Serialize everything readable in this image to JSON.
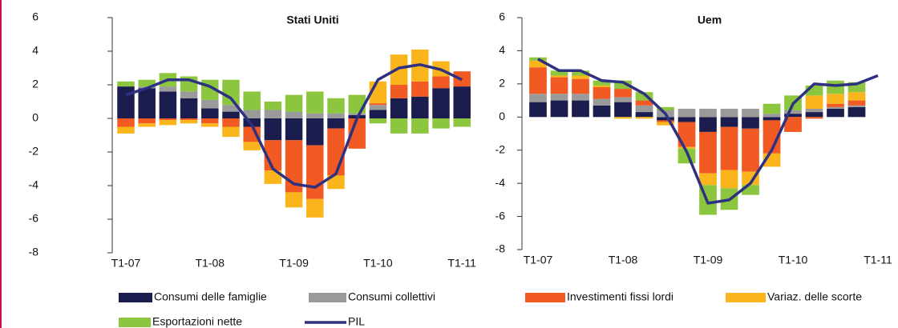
{
  "chart_data": [
    {
      "type": "bar",
      "stacked": true,
      "title": "Stati Uniti",
      "categories": [
        "T1-07",
        null,
        null,
        null,
        "T1-08",
        null,
        null,
        null,
        "T1-09",
        null,
        null,
        null,
        "T1-10",
        null,
        null,
        null,
        "T1-11"
      ],
      "ylim": [
        -8,
        6
      ],
      "yticks": [
        -8,
        -6,
        -4,
        -2,
        0,
        2,
        4,
        6
      ],
      "series": [
        {
          "name": "Consumi delle famiglie",
          "color": "#1b1d4f",
          "values": [
            1.9,
            1.8,
            1.6,
            1.2,
            0.6,
            0.4,
            -0.5,
            -1.3,
            -1.3,
            -1.6,
            -0.6,
            0.2,
            0.5,
            1.2,
            1.3,
            1.8,
            1.9
          ]
        },
        {
          "name": "Consumi collettivi",
          "color": "#9a9a9a",
          "values": [
            0,
            0.1,
            0.3,
            0.4,
            0.5,
            0.4,
            0.5,
            0.5,
            0.4,
            0.3,
            0.3,
            0.1,
            0.3,
            0,
            0,
            0,
            0
          ]
        },
        {
          "name": "Investimenti fissi lordi",
          "color": "#f15a22",
          "values": [
            -0.5,
            -0.3,
            -0.1,
            -0.1,
            -0.3,
            -0.5,
            -0.9,
            -1.8,
            -3.1,
            -3.2,
            -2.8,
            -1.8,
            0.1,
            0.8,
            0.9,
            0.7,
            0.9
          ]
        },
        {
          "name": "Variaz. delle scorte",
          "color": "#f9b51b",
          "values": [
            -0.4,
            -0.2,
            -0.3,
            -0.2,
            -0.2,
            -0.6,
            -0.5,
            -0.8,
            -0.9,
            -1.1,
            -0.8,
            0,
            1.3,
            1.8,
            1.9,
            0.9,
            0
          ]
        },
        {
          "name": "Esportazioni nette",
          "color": "#8cc63f",
          "values": [
            0.3,
            0.4,
            0.8,
            0.9,
            1.2,
            1.5,
            1.1,
            0.5,
            1.0,
            1.3,
            0.9,
            1.1,
            -0.3,
            -0.9,
            -0.9,
            -0.6,
            -0.5
          ]
        },
        {
          "name": "PIL",
          "type": "line",
          "color": "#2e3180",
          "values": [
            1.4,
            1.8,
            2.3,
            2.3,
            1.9,
            1.2,
            -0.4,
            -3.0,
            -3.9,
            -4.1,
            -3.3,
            0,
            2.3,
            3.0,
            3.2,
            2.9,
            2.3
          ]
        }
      ]
    },
    {
      "type": "bar",
      "stacked": true,
      "title": "Uem",
      "categories": [
        "T1-07",
        null,
        null,
        null,
        "T1-08",
        null,
        null,
        null,
        "T1-09",
        null,
        null,
        null,
        "T1-10",
        null,
        null,
        null,
        "T1-11"
      ],
      "ylim": [
        -8,
        6
      ],
      "yticks": [
        -8,
        -6,
        -4,
        -2,
        0,
        2,
        4,
        6
      ],
      "series": [
        {
          "name": "Consumi delle famiglie",
          "color": "#1b1d4f",
          "values": [
            0.9,
            1.0,
            1.0,
            0.7,
            0.9,
            0.3,
            -0.2,
            -0.3,
            -0.9,
            -0.6,
            -0.7,
            -0.2,
            0.2,
            0.3,
            0.5,
            0.6,
            null
          ]
        },
        {
          "name": "Consumi collettivi",
          "color": "#9a9a9a",
          "values": [
            0.5,
            0.4,
            0.4,
            0.4,
            0.3,
            0.4,
            0.4,
            0.5,
            0.5,
            0.5,
            0.5,
            0.2,
            0.2,
            0.2,
            0.1,
            0.1,
            null
          ]
        },
        {
          "name": "Investimenti fissi lordi",
          "color": "#f15a22",
          "values": [
            1.6,
            1.0,
            0.9,
            0.7,
            0.5,
            0.3,
            -0.1,
            -1.5,
            -2.5,
            -2.6,
            -2.6,
            -2.0,
            -0.9,
            -0.1,
            0.2,
            0.3,
            null
          ]
        },
        {
          "name": "Variaz. delle scorte",
          "color": "#f9b51b",
          "values": [
            0.4,
            0.1,
            0.2,
            0.1,
            -0.1,
            -0.1,
            -0.2,
            -0.1,
            -0.7,
            -1.1,
            -0.8,
            -0.8,
            0,
            0.8,
            0.6,
            0.5,
            null
          ]
        },
        {
          "name": "Esportazioni nette",
          "color": "#8cc63f",
          "values": [
            0.2,
            0.3,
            0.3,
            0.3,
            0.5,
            0.5,
            0.2,
            -0.9,
            -1.8,
            -1.3,
            -0.6,
            0.6,
            0.9,
            0.6,
            0.8,
            0.6,
            null
          ]
        },
        {
          "name": "PIL",
          "type": "line",
          "color": "#2e3180",
          "values": [
            3.5,
            2.8,
            2.8,
            2.2,
            2.1,
            1.4,
            0.2,
            -2.1,
            -5.2,
            -5.0,
            -4.0,
            -2.0,
            0.8,
            2.0,
            1.9,
            2.0,
            2.5
          ]
        }
      ]
    }
  ]
}
